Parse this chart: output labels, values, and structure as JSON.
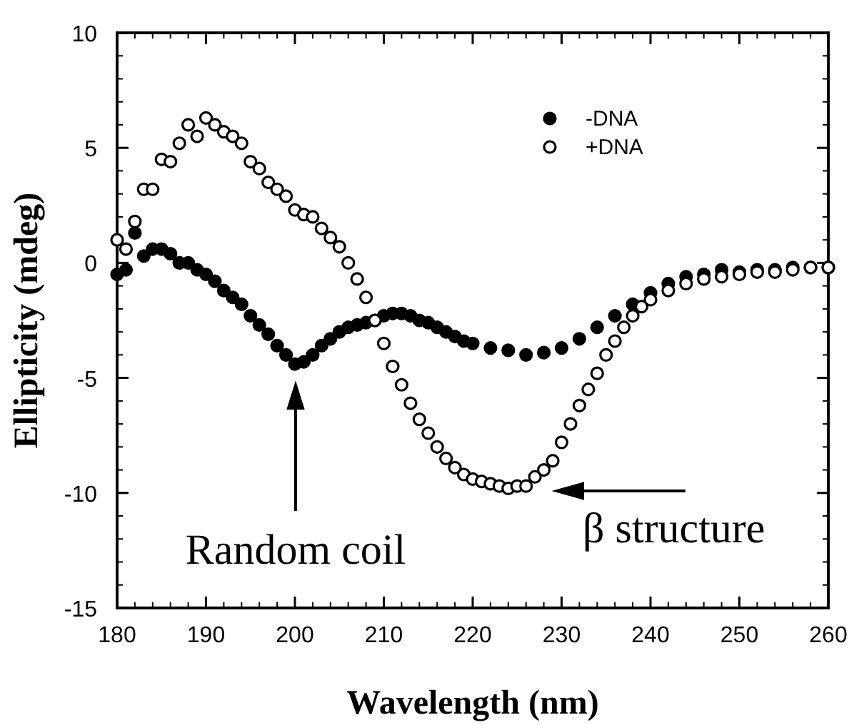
{
  "chart_data": {
    "type": "scatter",
    "xlabel": "Wavelength (nm)",
    "ylabel": "Ellipticity (mdeg)",
    "xlim": [
      180,
      260
    ],
    "xticks": [
      180,
      190,
      200,
      210,
      220,
      230,
      240,
      250,
      260
    ],
    "ylim": [
      -15,
      10
    ],
    "yticks": [
      -15,
      -10,
      -5,
      0,
      5,
      10
    ],
    "grid": false,
    "legend": "top right",
    "marker": "circle",
    "series": [
      {
        "name": "-DNA",
        "color": "#000000",
        "x": [
          180,
          181,
          182,
          183,
          184,
          185,
          186,
          187,
          188,
          189,
          190,
          191,
          192,
          193,
          194,
          195,
          196,
          197,
          198,
          199,
          200,
          201,
          202,
          203,
          204,
          205,
          206,
          207,
          208,
          209,
          210,
          211,
          212,
          213,
          214,
          215,
          216,
          217,
          218,
          219,
          220,
          222,
          224,
          226,
          228,
          230,
          232,
          234,
          236,
          238,
          240,
          242,
          244,
          246,
          248,
          250,
          252,
          254,
          256,
          258,
          260
        ],
        "values": [
          -0.5,
          -0.3,
          1.3,
          0.3,
          0.6,
          0.6,
          0.4,
          0,
          0,
          -0.3,
          -0.5,
          -0.8,
          -1.2,
          -1.5,
          -1.8,
          -2.3,
          -2.7,
          -3.1,
          -3.6,
          -4,
          -4.4,
          -4.3,
          -4,
          -3.6,
          -3.3,
          -3,
          -2.8,
          -2.7,
          -2.6,
          -2.5,
          -2.3,
          -2.2,
          -2.2,
          -2.3,
          -2.5,
          -2.6,
          -2.8,
          -3,
          -3.2,
          -3.4,
          -3.5,
          -3.7,
          -3.8,
          -4,
          -3.9,
          -3.7,
          -3.3,
          -2.8,
          -2.3,
          -1.8,
          -1.3,
          -0.9,
          -0.6,
          -0.5,
          -0.3,
          -0.4,
          -0.3,
          -0.3,
          -0.2,
          -0.2,
          -0.2
        ]
      },
      {
        "name": "+DNA",
        "color": "#ffffff",
        "x": [
          180,
          181,
          182,
          183,
          184,
          185,
          186,
          187,
          188,
          189,
          190,
          191,
          192,
          193,
          194,
          195,
          196,
          197,
          198,
          199,
          200,
          201,
          202,
          203,
          204,
          205,
          206,
          207,
          208,
          209,
          210,
          211,
          212,
          213,
          214,
          215,
          216,
          217,
          218,
          219,
          220,
          221,
          222,
          223,
          224,
          225,
          226,
          227,
          228,
          229,
          230,
          231,
          232,
          233,
          234,
          235,
          236,
          237,
          238,
          239,
          240,
          242,
          244,
          246,
          248,
          250,
          252,
          254,
          256,
          258,
          260
        ],
        "values": [
          1,
          0.6,
          1.8,
          3.2,
          3.2,
          4.5,
          4.4,
          5.2,
          6,
          5.5,
          6.3,
          6,
          5.7,
          5.5,
          5.2,
          4.4,
          4.1,
          3.5,
          3.2,
          2.9,
          2.3,
          2.1,
          2,
          1.5,
          1.1,
          0.7,
          0,
          -0.7,
          -1.5,
          -2.5,
          -3.5,
          -4.5,
          -5.3,
          -6.1,
          -6.8,
          -7.4,
          -8,
          -8.5,
          -8.9,
          -9.2,
          -9.4,
          -9.5,
          -9.6,
          -9.7,
          -9.8,
          -9.7,
          -9.7,
          -9.3,
          -9,
          -8.6,
          -7.8,
          -7,
          -6.2,
          -5.5,
          -4.8,
          -4,
          -3.4,
          -2.8,
          -2.3,
          -1.9,
          -1.6,
          -1.2,
          -0.9,
          -0.7,
          -0.6,
          -0.5,
          -0.4,
          -0.4,
          -0.3,
          -0.2,
          -0.2
        ]
      }
    ],
    "annotations": [
      "Random coil",
      "β structure"
    ]
  }
}
